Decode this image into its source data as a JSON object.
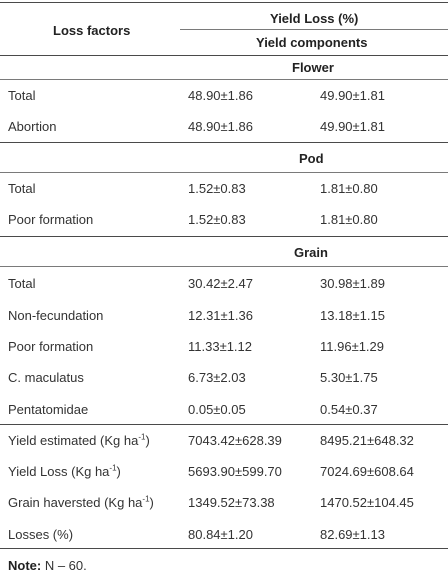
{
  "header": {
    "loss_factors": "Loss factors",
    "yield_loss": "Yield Loss (%)",
    "yield_components": "Yield components"
  },
  "sections": [
    {
      "title": "Flower",
      "rows": [
        {
          "label": "Total",
          "v1": "48.90±1.86",
          "v2": "49.90±1.81"
        },
        {
          "label": "Abortion",
          "v1": "48.90±1.86",
          "v2": "49.90±1.81"
        }
      ]
    },
    {
      "title": "Pod",
      "rows": [
        {
          "label": "Total",
          "v1": "1.52±0.83",
          "v2": "1.81±0.80"
        },
        {
          "label": "Poor formation",
          "v1": "1.52±0.83",
          "v2": "1.81±0.80"
        }
      ]
    },
    {
      "title": "Grain",
      "rows": [
        {
          "label": "Total",
          "v1": "30.42±2.47",
          "v2": "30.98±1.89"
        },
        {
          "label": "Non-fecundation",
          "v1": "12.31±1.36",
          "v2": "13.18±1.15"
        },
        {
          "label": "Poor formation",
          "v1": "11.33±1.12",
          "v2": "11.96±1.29"
        },
        {
          "label": "C. maculatus",
          "v1": "6.73±2.03",
          "v2": "5.30±1.75"
        },
        {
          "label": "Pentatomidae",
          "v1": "0.05±0.05",
          "v2": "0.54±0.37"
        }
      ]
    }
  ],
  "summary_rows": [
    {
      "label": "Yield estimated (Kg ha",
      "sup": "-1",
      "close": ")",
      "v1": "7043.42±628.39",
      "v2": "8495.21±648.32"
    },
    {
      "label": "Yield Loss (Kg ha",
      "sup": "-1",
      "close": ")",
      "v1": "5693.90±599.70",
      "v2": "7024.69±608.64"
    },
    {
      "label": "Grain haversted (Kg ha",
      "sup": "-1",
      "close": ")",
      "v1": "1349.52±73.38",
      "v2": "1470.52±104.45"
    },
    {
      "label": "Losses (%)",
      "sup": "",
      "close": "",
      "v1": "80.84±1.20",
      "v2": "82.69±1.13"
    }
  ],
  "note": {
    "label": "Note:",
    "text": "N – 60."
  }
}
